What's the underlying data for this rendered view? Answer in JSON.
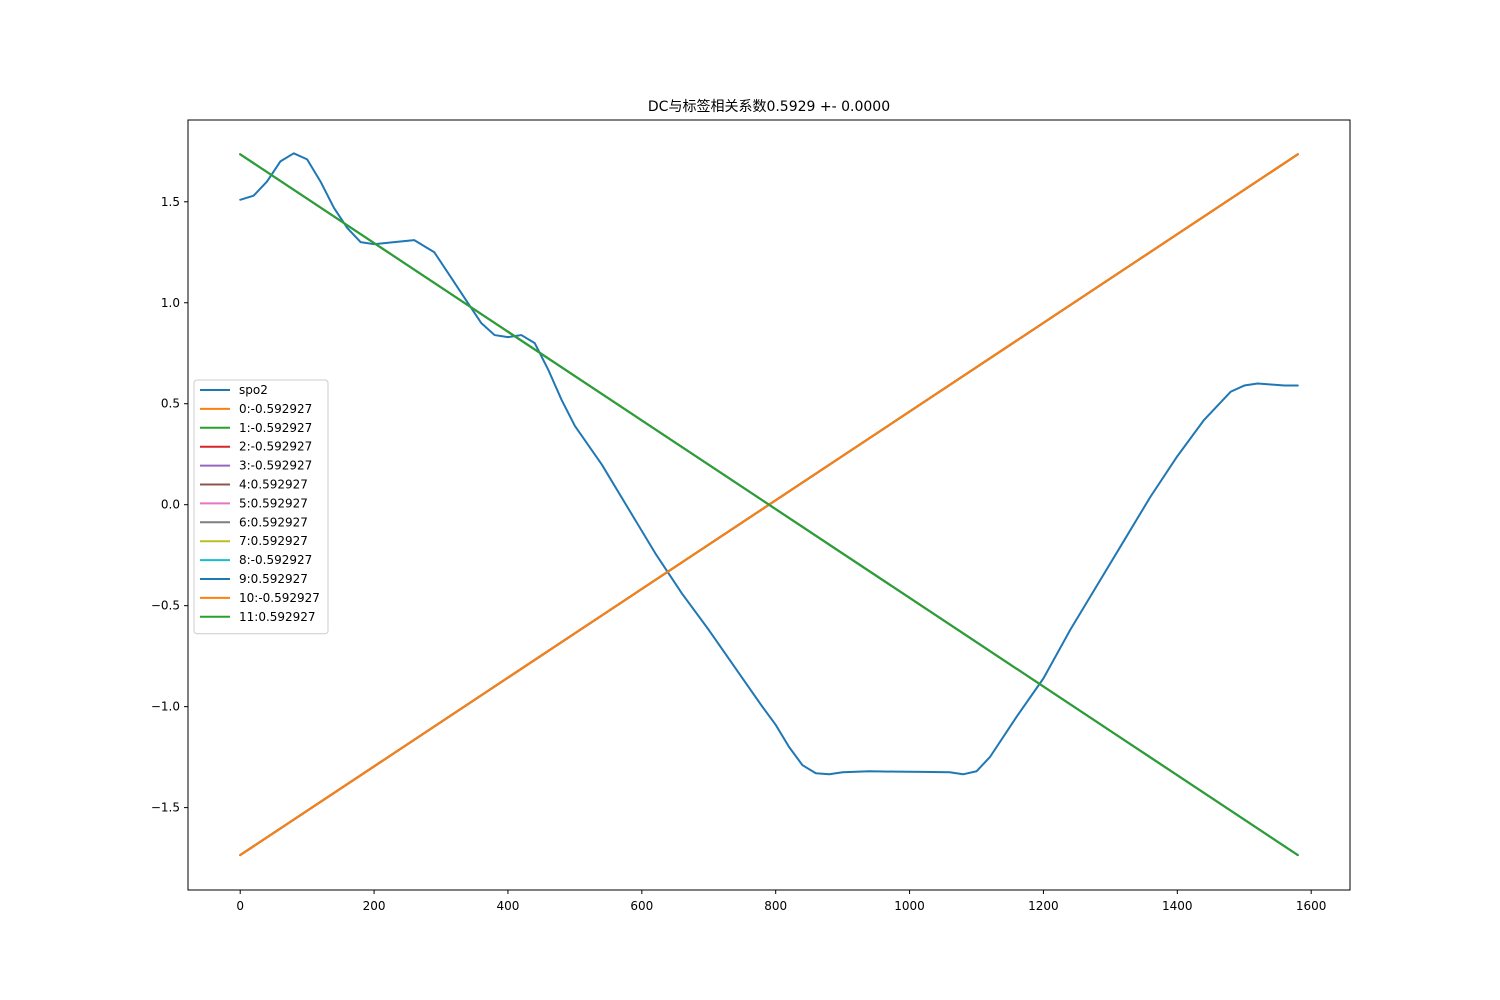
{
  "chart_data": {
    "type": "line",
    "title": "DC与标签相关系数0.5929 +- 0.0000",
    "xlabel": "",
    "ylabel": "",
    "xlim": [
      -78,
      1658
    ],
    "ylim": [
      -1.908,
      1.905
    ],
    "x_ticks": [
      0,
      200,
      400,
      600,
      800,
      1000,
      1200,
      1400,
      1600
    ],
    "y_ticks": [
      -1.5,
      -1.0,
      -0.5,
      0.0,
      0.5,
      1.0,
      1.5
    ],
    "x_tick_labels": [
      "0",
      "200",
      "400",
      "600",
      "800",
      "1000",
      "1200",
      "1400",
      "1600"
    ],
    "y_tick_labels": [
      "−1.5",
      "−1.0",
      "−0.5",
      "0.0",
      "0.5",
      "1.0",
      "1.5"
    ],
    "grid": false,
    "legend_position": "center-left",
    "series": [
      {
        "name": "spo2",
        "color": "#1f77b4",
        "x": [
          0,
          20,
          40,
          60,
          80,
          100,
          120,
          140,
          160,
          180,
          200,
          230,
          260,
          290,
          310,
          340,
          360,
          380,
          400,
          420,
          440,
          460,
          480,
          500,
          540,
          580,
          620,
          660,
          700,
          740,
          780,
          800,
          820,
          840,
          860,
          880,
          900,
          940,
          980,
          1020,
          1060,
          1080,
          1100,
          1120,
          1160,
          1200,
          1240,
          1280,
          1320,
          1360,
          1400,
          1440,
          1480,
          1500,
          1520,
          1540,
          1560,
          1580
        ],
        "values": [
          1.51,
          1.53,
          1.6,
          1.7,
          1.74,
          1.71,
          1.6,
          1.47,
          1.37,
          1.3,
          1.29,
          1.3,
          1.31,
          1.25,
          1.15,
          1.0,
          0.9,
          0.84,
          0.83,
          0.84,
          0.8,
          0.67,
          0.52,
          0.39,
          0.2,
          -0.02,
          -0.24,
          -0.44,
          -0.62,
          -0.81,
          -1.0,
          -1.09,
          -1.2,
          -1.29,
          -1.33,
          -1.335,
          -1.325,
          -1.32,
          -1.322,
          -1.323,
          -1.325,
          -1.335,
          -1.32,
          -1.25,
          -1.05,
          -0.86,
          -0.62,
          -0.4,
          -0.18,
          0.04,
          0.24,
          0.42,
          0.56,
          0.59,
          0.6,
          0.595,
          0.59,
          0.59
        ]
      },
      {
        "name": "0:-0.592927",
        "color": "#ff7f0e",
        "x": [
          0,
          1580
        ],
        "values": [
          -1.735,
          1.735
        ]
      },
      {
        "name": "1:-0.592927",
        "color": "#2ca02c",
        "x": [
          0,
          1580
        ],
        "values": [
          1.735,
          -1.735
        ]
      },
      {
        "name": "2:-0.592927",
        "color": "#d62728",
        "x": [
          0,
          1580
        ],
        "values": [
          1.735,
          -1.735
        ]
      },
      {
        "name": "3:-0.592927",
        "color": "#9467bd",
        "x": [
          0,
          1580
        ],
        "values": [
          1.735,
          -1.735
        ]
      },
      {
        "name": "4:0.592927",
        "color": "#8c564b",
        "x": [
          0,
          1580
        ],
        "values": [
          -1.735,
          1.735
        ]
      },
      {
        "name": "5:0.592927",
        "color": "#e377c2",
        "x": [
          0,
          1580
        ],
        "values": [
          -1.735,
          1.735
        ]
      },
      {
        "name": "6:0.592927",
        "color": "#7f7f7f",
        "x": [
          0,
          1580
        ],
        "values": [
          -1.735,
          1.735
        ]
      },
      {
        "name": "7:0.592927",
        "color": "#bcbd22",
        "x": [
          0,
          1580
        ],
        "values": [
          -1.735,
          1.735
        ]
      },
      {
        "name": "8:-0.592927",
        "color": "#17becf",
        "x": [
          0,
          1580
        ],
        "values": [
          1.735,
          -1.735
        ]
      },
      {
        "name": "9:0.592927",
        "color": "#1f77b4",
        "x": [
          0,
          1580
        ],
        "values": [
          -1.735,
          1.735
        ]
      },
      {
        "name": "10:-0.592927",
        "color": "#ff7f0e",
        "x": [
          0,
          1580
        ],
        "values": [
          -1.735,
          1.735
        ]
      },
      {
        "name": "11:0.592927",
        "color": "#2ca02c",
        "x": [
          0,
          1580
        ],
        "values": [
          1.735,
          -1.735
        ]
      }
    ]
  }
}
